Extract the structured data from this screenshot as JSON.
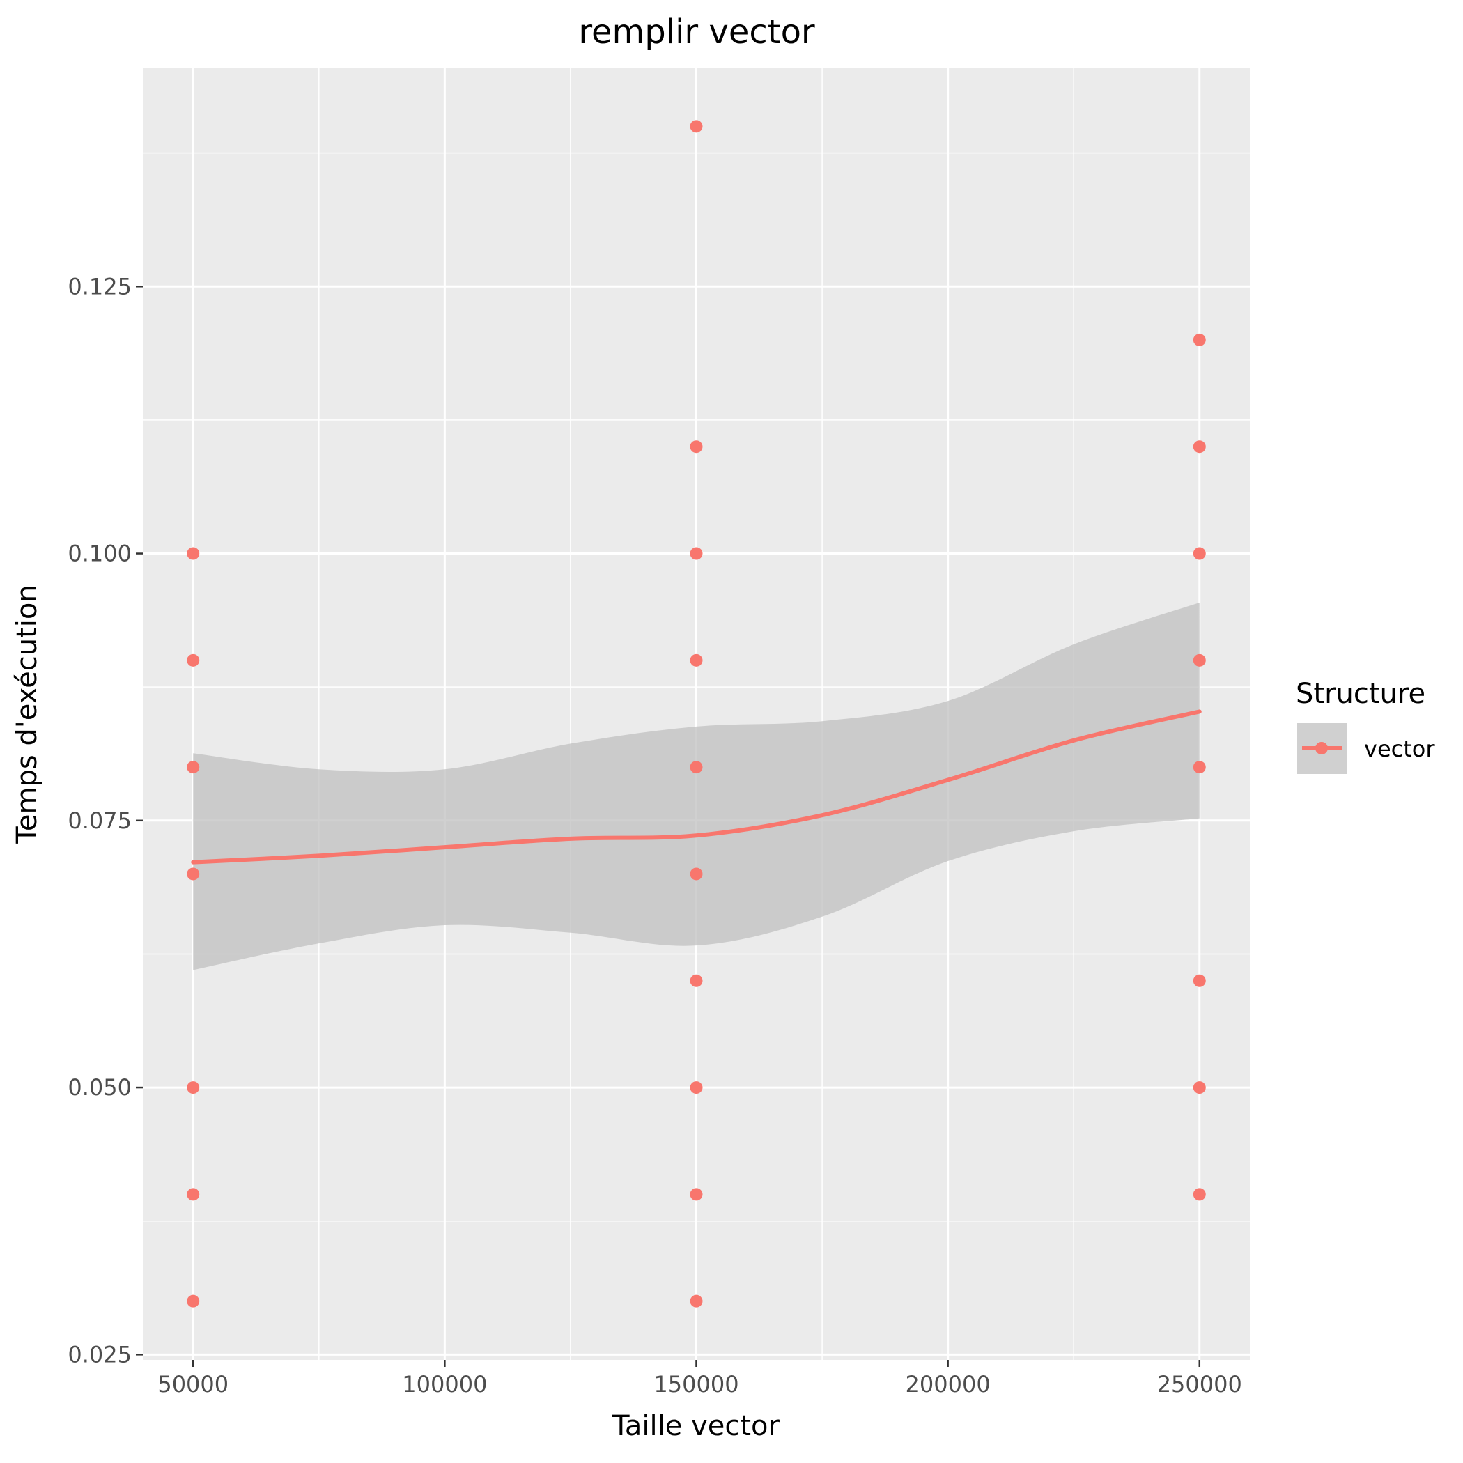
{
  "chart_data": {
    "type": "scatter",
    "title": "remplir vector",
    "xlabel": "Taille vector",
    "ylabel": "Temps d'exécution",
    "xlim": [
      40000,
      260000
    ],
    "ylim": [
      0.0245,
      0.1455
    ],
    "x_ticks": [
      50000,
      100000,
      150000,
      200000,
      250000
    ],
    "x_tick_labels": [
      "50000",
      "100000",
      "150000",
      "200000",
      "250000"
    ],
    "x_minor_ticks": [
      75000,
      125000,
      175000,
      225000
    ],
    "y_ticks": [
      0.025,
      0.05,
      0.075,
      0.1,
      0.125
    ],
    "y_tick_labels": [
      "0.025",
      "0.050",
      "0.075",
      "0.100",
      "0.125"
    ],
    "y_minor_ticks": [
      0.0375,
      0.0625,
      0.0875,
      0.1125,
      0.1375
    ],
    "grid": true,
    "legend": {
      "title": "Structure",
      "position": "right",
      "entries": [
        "vector"
      ]
    },
    "series": [
      {
        "name": "vector",
        "color": "#F8766D",
        "points": [
          [
            50000,
            0.03
          ],
          [
            50000,
            0.04
          ],
          [
            50000,
            0.05
          ],
          [
            50000,
            0.07
          ],
          [
            50000,
            0.08
          ],
          [
            50000,
            0.09
          ],
          [
            50000,
            0.1
          ],
          [
            150000,
            0.03
          ],
          [
            150000,
            0.04
          ],
          [
            150000,
            0.05
          ],
          [
            150000,
            0.06
          ],
          [
            150000,
            0.07
          ],
          [
            150000,
            0.08
          ],
          [
            150000,
            0.09
          ],
          [
            150000,
            0.1
          ],
          [
            150000,
            0.11
          ],
          [
            150000,
            0.14
          ],
          [
            250000,
            0.04
          ],
          [
            250000,
            0.05
          ],
          [
            250000,
            0.06
          ],
          [
            250000,
            0.08
          ],
          [
            250000,
            0.09
          ],
          [
            250000,
            0.1
          ],
          [
            250000,
            0.11
          ],
          [
            250000,
            0.12
          ]
        ],
        "smooth": {
          "x": [
            50000,
            75000,
            100000,
            125000,
            150000,
            175000,
            200000,
            225000,
            250000
          ],
          "y": [
            0.0711,
            0.0717,
            0.0725,
            0.0733,
            0.0736,
            0.0755,
            0.0788,
            0.0825,
            0.0852
          ],
          "lower": [
            0.061,
            0.0635,
            0.0652,
            0.0645,
            0.0633,
            0.066,
            0.0712,
            0.074,
            0.0752
          ],
          "upper": [
            0.0813,
            0.0798,
            0.0798,
            0.0822,
            0.0838,
            0.0843,
            0.0862,
            0.0915,
            0.0954
          ]
        }
      }
    ]
  },
  "colors": {
    "panel_background": "#EBEBEB",
    "grid": "#FFFFFF",
    "ribbon": "#C0C0C0",
    "point": "#F8766D",
    "line": "#F8766D"
  }
}
